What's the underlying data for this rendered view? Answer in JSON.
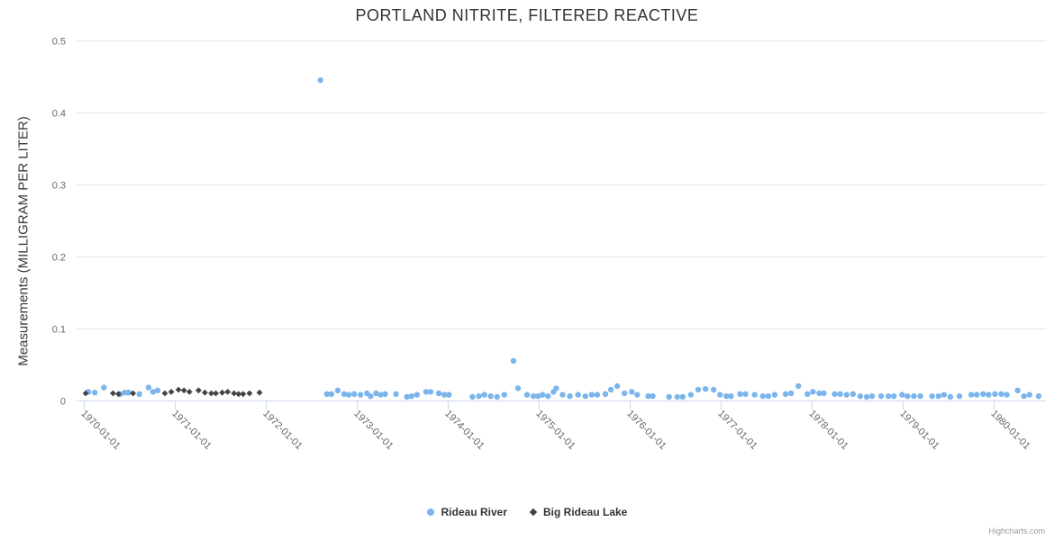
{
  "title": "PORTLAND NITRITE, FILTERED REACTIVE",
  "credits": "Highcharts.com",
  "chart_data": {
    "type": "scatter",
    "title": "PORTLAND NITRITE, FILTERED REACTIVE",
    "xlabel": "",
    "ylabel": "Measurements (MILLIGRAM PER LITER)",
    "xlim": [
      1969.92,
      1980.57
    ],
    "ylim": [
      0,
      0.5
    ],
    "grid": true,
    "legend_position": "bottom",
    "x_ticks": [
      {
        "value": 1970,
        "label": "1970-01-01"
      },
      {
        "value": 1971,
        "label": "1971-01-01"
      },
      {
        "value": 1972,
        "label": "1972-01-01"
      },
      {
        "value": 1973,
        "label": "1973-01-01"
      },
      {
        "value": 1974,
        "label": "1974-01-01"
      },
      {
        "value": 1975,
        "label": "1975-01-01"
      },
      {
        "value": 1976,
        "label": "1976-01-01"
      },
      {
        "value": 1977,
        "label": "1977-01-01"
      },
      {
        "value": 1978,
        "label": "1978-01-01"
      },
      {
        "value": 1979,
        "label": "1979-01-01"
      },
      {
        "value": 1980,
        "label": "1980-01-01"
      }
    ],
    "y_ticks": [
      {
        "value": 0,
        "label": "0"
      },
      {
        "value": 0.1,
        "label": "0.1"
      },
      {
        "value": 0.2,
        "label": "0.2"
      },
      {
        "value": 0.3,
        "label": "0.3"
      },
      {
        "value": 0.4,
        "label": "0.4"
      },
      {
        "value": 0.5,
        "label": "0.5"
      }
    ],
    "colors": {
      "grid": "#e6e6e6",
      "axis_line": "#ccd6eb",
      "tick_label": "#666666",
      "title": "#333333",
      "legend_text": "#333333",
      "credits": "#999999"
    },
    "series": [
      {
        "name": "Rideau River",
        "color": "#7cb5ec",
        "marker": "circle",
        "points": [
          [
            1970.05,
            0.012
          ],
          [
            1970.12,
            0.011
          ],
          [
            1970.22,
            0.018
          ],
          [
            1970.4,
            0.009
          ],
          [
            1970.45,
            0.011
          ],
          [
            1970.49,
            0.011
          ],
          [
            1970.61,
            0.009
          ],
          [
            1970.71,
            0.018
          ],
          [
            1970.76,
            0.012
          ],
          [
            1970.81,
            0.014
          ],
          [
            1972.6,
            0.445
          ],
          [
            1972.67,
            0.009
          ],
          [
            1972.72,
            0.009
          ],
          [
            1972.79,
            0.014
          ],
          [
            1972.86,
            0.009
          ],
          [
            1972.91,
            0.008
          ],
          [
            1972.97,
            0.009
          ],
          [
            1973.04,
            0.008
          ],
          [
            1973.11,
            0.01
          ],
          [
            1973.15,
            0.006
          ],
          [
            1973.21,
            0.01
          ],
          [
            1973.26,
            0.008
          ],
          [
            1973.31,
            0.009
          ],
          [
            1973.43,
            0.009
          ],
          [
            1973.55,
            0.005
          ],
          [
            1973.6,
            0.006
          ],
          [
            1973.66,
            0.008
          ],
          [
            1973.76,
            0.012
          ],
          [
            1973.81,
            0.012
          ],
          [
            1973.9,
            0.01
          ],
          [
            1973.96,
            0.008
          ],
          [
            1974.01,
            0.008
          ],
          [
            1974.27,
            0.005
          ],
          [
            1974.34,
            0.006
          ],
          [
            1974.4,
            0.008
          ],
          [
            1974.47,
            0.006
          ],
          [
            1974.54,
            0.005
          ],
          [
            1974.62,
            0.008
          ],
          [
            1974.72,
            0.055
          ],
          [
            1974.77,
            0.017
          ],
          [
            1974.87,
            0.008
          ],
          [
            1974.94,
            0.006
          ],
          [
            1974.99,
            0.006
          ],
          [
            1975.04,
            0.008
          ],
          [
            1975.1,
            0.006
          ],
          [
            1975.16,
            0.012
          ],
          [
            1975.19,
            0.017
          ],
          [
            1975.26,
            0.008
          ],
          [
            1975.34,
            0.006
          ],
          [
            1975.43,
            0.008
          ],
          [
            1975.51,
            0.006
          ],
          [
            1975.58,
            0.008
          ],
          [
            1975.64,
            0.008
          ],
          [
            1975.73,
            0.009
          ],
          [
            1975.79,
            0.015
          ],
          [
            1975.86,
            0.02
          ],
          [
            1975.94,
            0.01
          ],
          [
            1976.02,
            0.012
          ],
          [
            1976.08,
            0.008
          ],
          [
            1976.2,
            0.006
          ],
          [
            1976.25,
            0.006
          ],
          [
            1976.43,
            0.005
          ],
          [
            1976.52,
            0.005
          ],
          [
            1976.58,
            0.005
          ],
          [
            1976.67,
            0.008
          ],
          [
            1976.75,
            0.015
          ],
          [
            1976.83,
            0.016
          ],
          [
            1976.92,
            0.015
          ],
          [
            1976.99,
            0.008
          ],
          [
            1977.06,
            0.006
          ],
          [
            1977.11,
            0.006
          ],
          [
            1977.21,
            0.009
          ],
          [
            1977.27,
            0.009
          ],
          [
            1977.37,
            0.008
          ],
          [
            1977.46,
            0.006
          ],
          [
            1977.52,
            0.006
          ],
          [
            1977.59,
            0.008
          ],
          [
            1977.71,
            0.009
          ],
          [
            1977.77,
            0.01
          ],
          [
            1977.85,
            0.02
          ],
          [
            1977.95,
            0.009
          ],
          [
            1978.01,
            0.012
          ],
          [
            1978.08,
            0.01
          ],
          [
            1978.13,
            0.01
          ],
          [
            1978.25,
            0.009
          ],
          [
            1978.31,
            0.009
          ],
          [
            1978.38,
            0.008
          ],
          [
            1978.45,
            0.009
          ],
          [
            1978.53,
            0.006
          ],
          [
            1978.6,
            0.005
          ],
          [
            1978.66,
            0.006
          ],
          [
            1978.76,
            0.006
          ],
          [
            1978.84,
            0.006
          ],
          [
            1978.9,
            0.006
          ],
          [
            1978.99,
            0.008
          ],
          [
            1979.05,
            0.006
          ],
          [
            1979.12,
            0.006
          ],
          [
            1979.19,
            0.006
          ],
          [
            1979.32,
            0.006
          ],
          [
            1979.39,
            0.006
          ],
          [
            1979.45,
            0.008
          ],
          [
            1979.52,
            0.005
          ],
          [
            1979.62,
            0.006
          ],
          [
            1979.75,
            0.008
          ],
          [
            1979.81,
            0.008
          ],
          [
            1979.88,
            0.009
          ],
          [
            1979.94,
            0.008
          ],
          [
            1980.01,
            0.009
          ],
          [
            1980.08,
            0.009
          ],
          [
            1980.14,
            0.008
          ],
          [
            1980.26,
            0.014
          ],
          [
            1980.33,
            0.006
          ],
          [
            1980.39,
            0.008
          ],
          [
            1980.49,
            0.006
          ]
        ]
      },
      {
        "name": "Big Rideau Lake",
        "color": "#434348",
        "marker": "diamond",
        "points": [
          [
            1970.02,
            0.01
          ],
          [
            1970.32,
            0.01
          ],
          [
            1970.38,
            0.009
          ],
          [
            1970.54,
            0.01
          ],
          [
            1970.89,
            0.01
          ],
          [
            1970.96,
            0.012
          ],
          [
            1971.04,
            0.015
          ],
          [
            1971.1,
            0.014
          ],
          [
            1971.16,
            0.012
          ],
          [
            1971.26,
            0.014
          ],
          [
            1971.33,
            0.011
          ],
          [
            1971.4,
            0.01
          ],
          [
            1971.45,
            0.01
          ],
          [
            1971.52,
            0.011
          ],
          [
            1971.58,
            0.012
          ],
          [
            1971.65,
            0.01
          ],
          [
            1971.7,
            0.009
          ],
          [
            1971.75,
            0.009
          ],
          [
            1971.82,
            0.01
          ],
          [
            1971.93,
            0.011
          ]
        ]
      }
    ]
  }
}
